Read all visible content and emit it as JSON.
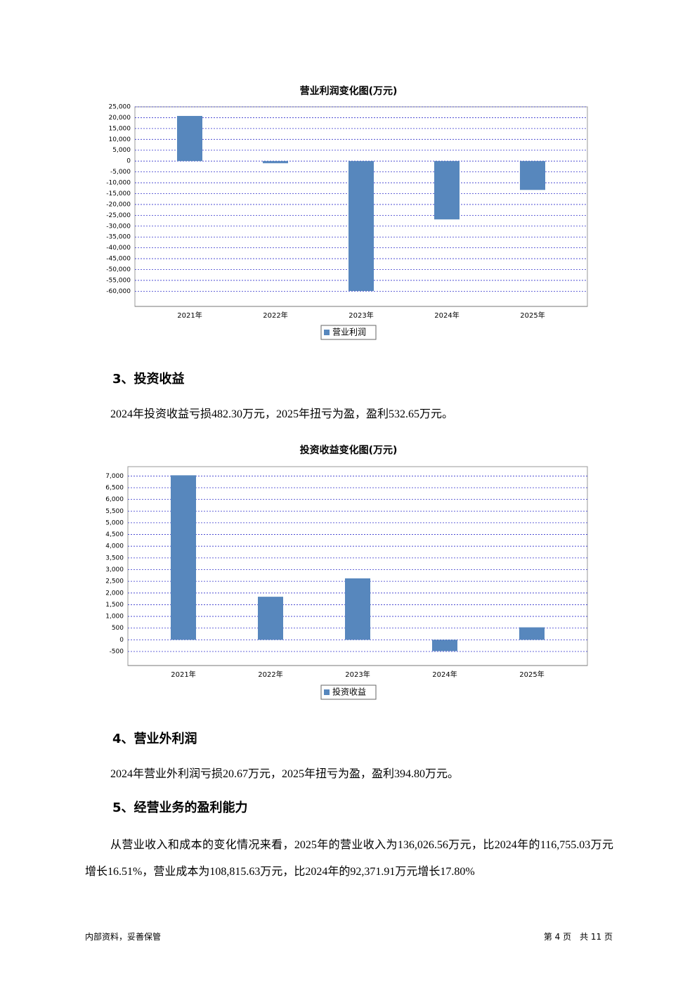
{
  "chart_data": [
    {
      "type": "bar",
      "title": "营业利润变化图(万元)",
      "categories": [
        "2021年",
        "2022年",
        "2023年",
        "2024年",
        "2025年"
      ],
      "series": [
        {
          "name": "营业利润",
          "color": "#5787bd",
          "values": [
            20800,
            -1000,
            -59900,
            -26900,
            -13300
          ]
        }
      ],
      "ylim": [
        -67000,
        25000
      ],
      "yticks": [
        {
          "value": 25000,
          "label": "25,000"
        },
        {
          "value": 20000,
          "label": "20,000"
        },
        {
          "value": 15000,
          "label": "15,000"
        },
        {
          "value": 10000,
          "label": "10,000"
        },
        {
          "value": 5000,
          "label": "5,000"
        },
        0,
        {
          "value": -5000,
          "label": "-5,000"
        },
        {
          "value": -10000,
          "label": "-10,000"
        },
        {
          "value": -15000,
          "label": "-15,000"
        },
        {
          "value": -20000,
          "label": "-20,000"
        },
        {
          "value": -25000,
          "label": "-25,000"
        },
        {
          "value": -30000,
          "label": "-30,000"
        },
        {
          "value": -35000,
          "label": "-35,000"
        },
        {
          "value": -40000,
          "label": "-40,000"
        },
        {
          "value": -45000,
          "label": "-45,000"
        },
        {
          "value": -50000,
          "label": "-50,000"
        },
        {
          "value": -55000,
          "label": "-55,000"
        },
        {
          "value": -60000,
          "label": "-60,000"
        }
      ],
      "grid": true,
      "legend": "bottom"
    },
    {
      "type": "bar",
      "title": "投资收益变化图(万元)",
      "categories": [
        "2021年",
        "2022年",
        "2023年",
        "2024年",
        "2025年"
      ],
      "series": [
        {
          "name": "投资收益",
          "color": "#5787bd",
          "values": [
            7030,
            1840,
            2625,
            -482.3,
            532.65
          ]
        }
      ],
      "ylim": [
        -1100,
        7400
      ],
      "yticks": [
        {
          "value": 7000,
          "label": "7,000"
        },
        {
          "value": 6500,
          "label": "6,500"
        },
        {
          "value": 6000,
          "label": "6,000"
        },
        {
          "value": 5500,
          "label": "5,500"
        },
        {
          "value": 5000,
          "label": "5,000"
        },
        {
          "value": 4500,
          "label": "4,500"
        },
        {
          "value": 4000,
          "label": "4,000"
        },
        {
          "value": 3500,
          "label": "3,500"
        },
        {
          "value": 3000,
          "label": "3,000"
        },
        {
          "value": 2500,
          "label": "2,500"
        },
        {
          "value": 2000,
          "label": "2,000"
        },
        {
          "value": 1500,
          "label": "1,500"
        },
        {
          "value": 1000,
          "label": "1,000"
        },
        500,
        0,
        -500
      ],
      "grid": true,
      "legend": "bottom"
    }
  ],
  "sections": [
    {
      "heading": "3、投资收益",
      "paragraph": "2024年投资收益亏损482.30万元，2025年扭亏为盈，盈利532.65万元。"
    },
    {
      "heading": "4、营业外利润",
      "paragraph": "2024年营业外利润亏损20.67万元，2025年扭亏为盈，盈利394.80万元。"
    },
    {
      "heading": "5、经营业务的盈利能力",
      "paragraph": "从营业收入和成本的变化情况来看，2025年的营业收入为136,026.56万元，比2024年的116,755.03万元增长16.51%，营业成本为108,815.63万元，比2024年的92,371.91万元增长17.80%"
    }
  ],
  "footer": {
    "left": "内部资料，妥善保管",
    "right": "第 4 页　共 11 页"
  }
}
